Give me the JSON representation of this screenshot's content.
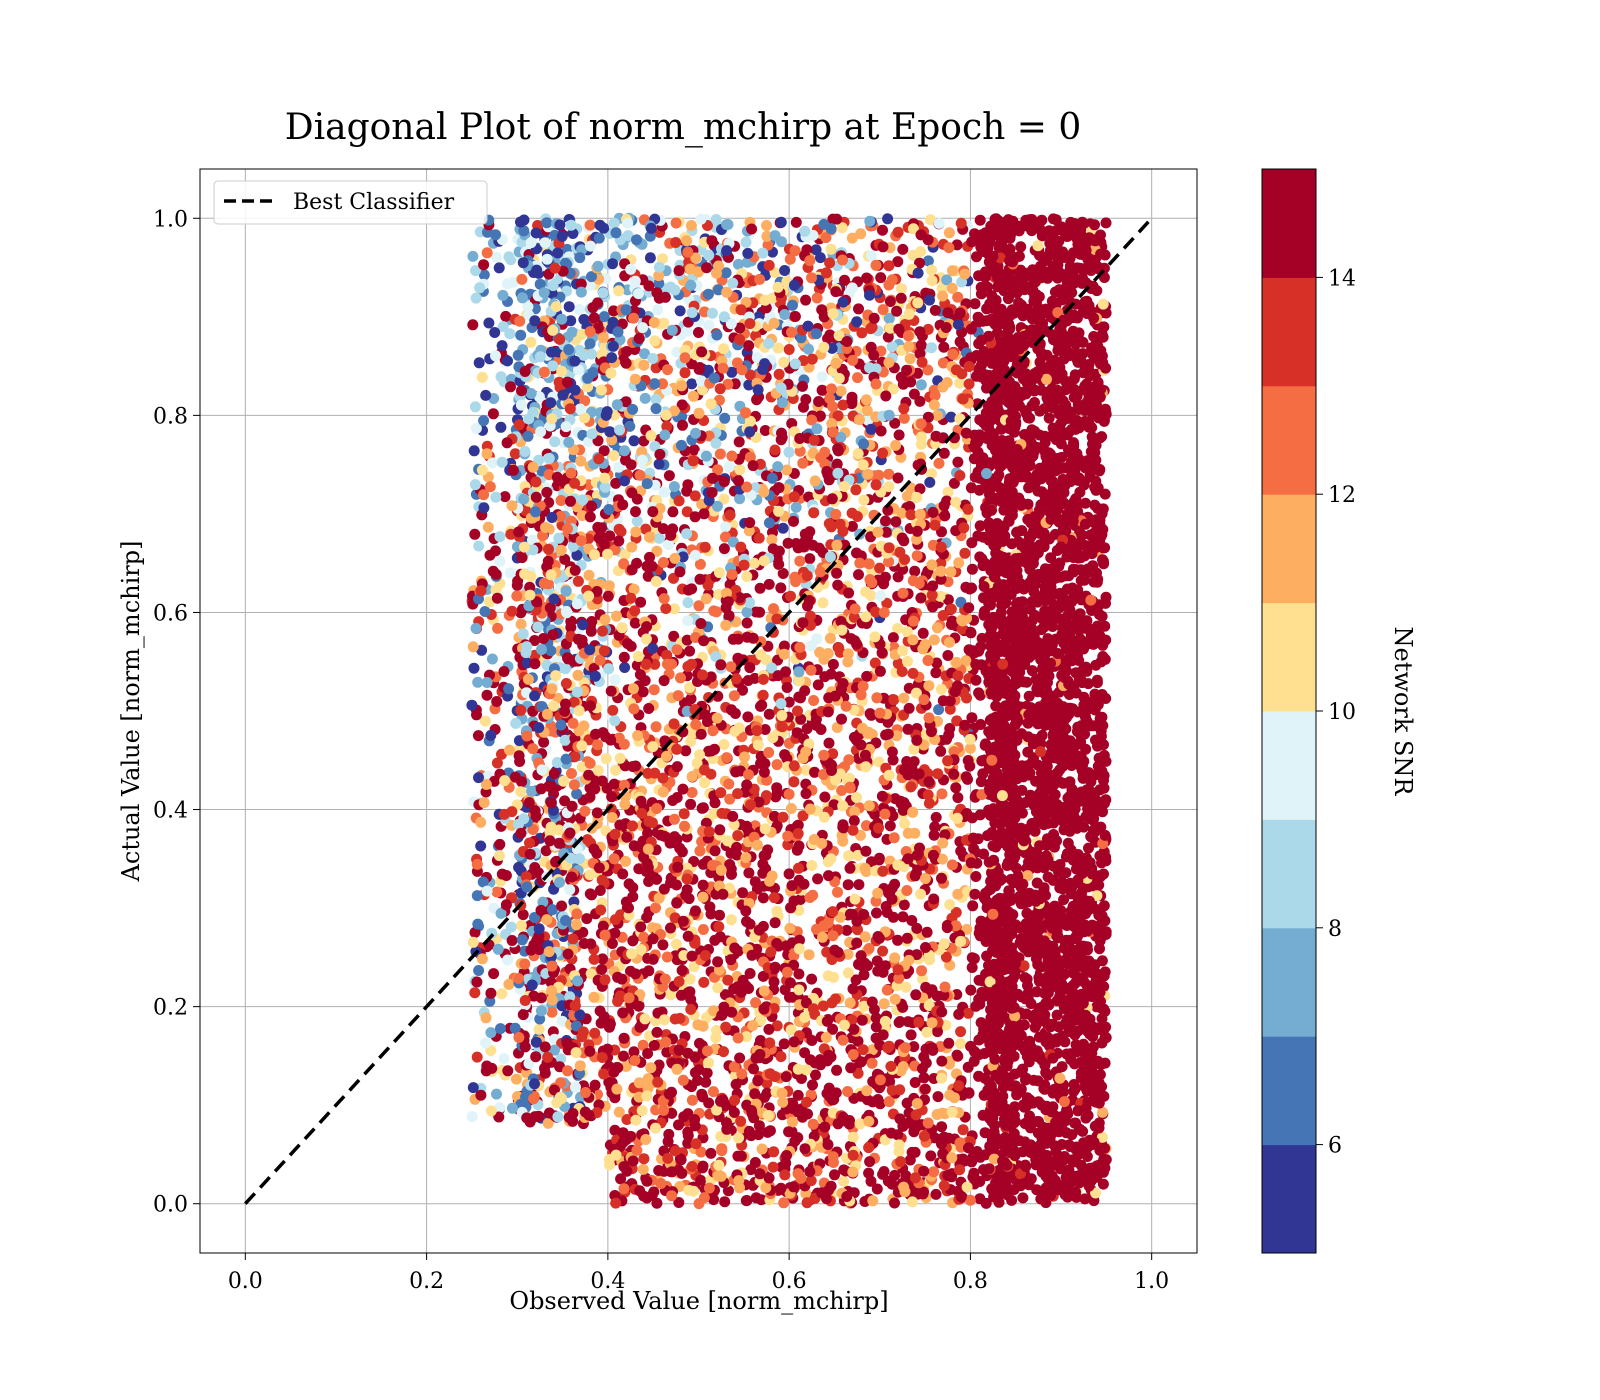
{
  "chart_data": {
    "type": "scatter",
    "title": "Diagonal Plot of norm_mchirp at Epoch = 0",
    "xlabel": "Observed Value [norm_mchirp]",
    "ylabel": "Actual Value [norm_mchirp]",
    "xlim": [
      -0.05,
      1.05
    ],
    "ylim": [
      -0.05,
      1.05
    ],
    "x_ticks": [
      "0.0",
      "0.2",
      "0.4",
      "0.6",
      "0.8",
      "1.0"
    ],
    "y_ticks": [
      "0.0",
      "0.2",
      "0.4",
      "0.6",
      "0.8",
      "1.0"
    ],
    "grid": true,
    "legend_position": "top-left",
    "diagonal": {
      "name": "Best Classifier",
      "x": [
        0.0,
        1.0
      ],
      "y": [
        0.0,
        1.0
      ],
      "style": "dashed",
      "color": "#000000"
    },
    "scatter_color_variable": "Network SNR",
    "scatter_regions": [
      {
        "x_range": [
          0.25,
          0.38
        ],
        "y_range": [
          0.0,
          0.99
        ],
        "snr_mix": "mixed low-high"
      },
      {
        "x_range": [
          0.38,
          0.8
        ],
        "y_range": [
          0.0,
          1.0
        ],
        "snr_mix": "low snr at top, high snr at bottom"
      },
      {
        "x_range": [
          0.8,
          0.95
        ],
        "y_range": [
          0.02,
          1.0
        ],
        "snr_mix": "mostly high snr"
      }
    ],
    "colorbar": {
      "label": "Network SNR",
      "range": [
        5,
        15
      ],
      "ticks": [
        "6",
        "8",
        "10",
        "12",
        "14"
      ],
      "colors": [
        "#313695",
        "#4575b4",
        "#74add1",
        "#abd9e9",
        "#e0f3f8",
        "#fee090",
        "#fdae61",
        "#f46d43",
        "#d73027",
        "#a50026"
      ]
    }
  }
}
